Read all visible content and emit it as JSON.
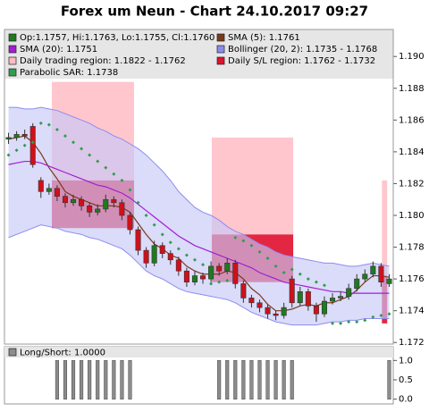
{
  "chart_data": [
    {
      "type": "candlestick",
      "title": "Forex um Neun - Chart 24.10.2017 09:27",
      "ylim": [
        1.1719,
        1.1917
      ],
      "yticks": [
        1.172,
        1.174,
        1.176,
        1.178,
        {
          "value": 1.18,
          "label": "1.180"
        },
        1.182,
        1.184,
        1.186,
        1.188,
        {
          "value": 1.19,
          "label": "1.190"
        }
      ],
      "candles": {
        "name": "Op:1.1757, Hi:1.1763, Lo:1.1755, Cl:1.1760",
        "color": "#1f7a1f",
        "down_color": "#d0101a",
        "open": [
          1.1848,
          1.1849,
          1.1851,
          1.1856,
          1.1822,
          1.1815,
          1.1817,
          1.1812,
          1.1808,
          1.181,
          1.1806,
          1.1802,
          1.1804,
          1.181,
          1.1808,
          1.18,
          1.1791,
          1.1778,
          1.177,
          1.1781,
          1.1776,
          1.1772,
          1.1765,
          1.1758,
          1.1762,
          1.176,
          1.1768,
          1.1765,
          1.177,
          1.1757,
          1.1748,
          1.1745,
          1.1742,
          1.1738,
          1.1737,
          1.176,
          1.1745,
          1.1752,
          1.1743,
          1.1738,
          1.1746,
          1.1748,
          1.1749,
          1.1754,
          1.176,
          1.1763,
          1.1768,
          1.1757
        ],
        "high": [
          1.1852,
          1.1853,
          1.1854,
          1.1858,
          1.1824,
          1.182,
          1.1819,
          1.1814,
          1.1813,
          1.1812,
          1.1808,
          1.1807,
          1.1813,
          1.1812,
          1.181,
          1.1802,
          1.1793,
          1.178,
          1.1784,
          1.1783,
          1.1778,
          1.1774,
          1.1767,
          1.1765,
          1.1764,
          1.1771,
          1.177,
          1.1773,
          1.1772,
          1.1759,
          1.175,
          1.1747,
          1.1744,
          1.174,
          1.1745,
          1.1762,
          1.1755,
          1.1754,
          1.1745,
          1.1749,
          1.1751,
          1.1752,
          1.1757,
          1.1763,
          1.1766,
          1.1771,
          1.177,
          1.1763
        ],
        "low": [
          1.1845,
          1.1847,
          1.1848,
          1.183,
          1.1811,
          1.1813,
          1.1809,
          1.1805,
          1.1806,
          1.1803,
          1.1799,
          1.18,
          1.1802,
          1.1805,
          1.1797,
          1.1788,
          1.1775,
          1.1767,
          1.1768,
          1.1773,
          1.1769,
          1.1762,
          1.1755,
          1.1756,
          1.1757,
          1.1758,
          1.1762,
          1.1763,
          1.1754,
          1.1745,
          1.1742,
          1.1739,
          1.1735,
          1.1734,
          1.1735,
          1.1742,
          1.1743,
          1.174,
          1.1733,
          1.1736,
          1.1744,
          1.1746,
          1.1747,
          1.1752,
          1.1758,
          1.1761,
          1.1755,
          1.1755
        ],
        "close": [
          1.1849,
          1.1851,
          1.185,
          1.1832,
          1.1815,
          1.1817,
          1.1812,
          1.1808,
          1.181,
          1.1806,
          1.1802,
          1.1804,
          1.181,
          1.1808,
          1.18,
          1.1791,
          1.1778,
          1.177,
          1.1781,
          1.1776,
          1.1772,
          1.1765,
          1.1758,
          1.1762,
          1.176,
          1.1768,
          1.1765,
          1.177,
          1.1757,
          1.1748,
          1.1745,
          1.1742,
          1.1738,
          1.1737,
          1.1742,
          1.1745,
          1.1752,
          1.1743,
          1.1738,
          1.1746,
          1.1748,
          1.1749,
          1.1754,
          1.176,
          1.1763,
          1.1768,
          1.1758,
          1.176
        ]
      },
      "series": [
        {
          "name": "SMA (5): 1.1761",
          "color": "#7a3a1a",
          "style": "line",
          "values": [
            1.1848,
            1.1849,
            1.185,
            1.1846,
            1.1839,
            1.183,
            1.1823,
            1.1815,
            1.1812,
            1.181,
            1.1808,
            1.1806,
            1.1806,
            1.1806,
            1.1805,
            1.1802,
            1.1795,
            1.1788,
            1.1782,
            1.1779,
            1.1775,
            1.1773,
            1.1768,
            1.1765,
            1.1763,
            1.1763,
            1.1763,
            1.1765,
            1.1764,
            1.176,
            1.1754,
            1.175,
            1.1744,
            1.174,
            1.174,
            1.1741,
            1.1743,
            1.1744,
            1.1743,
            1.1745,
            1.1745,
            1.1747,
            1.1749,
            1.1753,
            1.1758,
            1.1762,
            1.1762,
            1.1761
          ]
        },
        {
          "name": "SMA (20): 1.1751",
          "color": "#a020d0",
          "style": "line",
          "values": [
            1.1832,
            1.1833,
            1.1834,
            1.1834,
            1.1833,
            1.1831,
            1.1829,
            1.1827,
            1.1825,
            1.1823,
            1.1821,
            1.1819,
            1.1818,
            1.1816,
            1.1814,
            1.1811,
            1.1807,
            1.1803,
            1.1799,
            1.1795,
            1.1791,
            1.1787,
            1.1784,
            1.1781,
            1.1779,
            1.1777,
            1.1775,
            1.1773,
            1.1771,
            1.1769,
            1.1767,
            1.1764,
            1.1762,
            1.176,
            1.1758,
            1.1757,
            1.1756,
            1.1755,
            1.1754,
            1.1753,
            1.1752,
            1.1752,
            1.1751,
            1.1751,
            1.1751,
            1.1751,
            1.1751,
            1.1751
          ]
        },
        {
          "name": "Parabolic SAR: 1.1738",
          "color": "#2e9e4e",
          "style": "diamonds",
          "values": [
            1.1838,
            1.1841,
            1.1844,
            1.1846,
            1.1858,
            1.1857,
            1.1854,
            1.185,
            1.1846,
            1.1842,
            1.1838,
            1.1834,
            1.183,
            1.1826,
            1.1822,
            1.1816,
            1.1808,
            1.18,
            1.1794,
            1.1788,
            1.1783,
            1.1779,
            1.1775,
            1.1772,
            1.1769,
            1.1757,
            1.1758,
            1.1759,
            1.1786,
            1.1784,
            1.1781,
            1.1777,
            1.1773,
            1.1768,
            1.1764,
            1.1766,
            1.1763,
            1.176,
            1.1758,
            1.1756,
            1.1732,
            1.1732,
            1.1733,
            1.1733,
            1.1734,
            1.1736,
            1.1737,
            1.1738
          ]
        }
      ],
      "bands": {
        "name": "Bollinger (20, 2): 1.1735 - 1.1768",
        "color": "#8c8cf0",
        "fill": "#c8c8f8",
        "upper": [
          1.1868,
          1.1868,
          1.1867,
          1.1867,
          1.1868,
          1.1867,
          1.1866,
          1.1864,
          1.1862,
          1.186,
          1.1858,
          1.1855,
          1.1853,
          1.185,
          1.1848,
          1.1845,
          1.1842,
          1.1838,
          1.1833,
          1.1828,
          1.1822,
          1.1815,
          1.181,
          1.1805,
          1.1802,
          1.18,
          1.1797,
          1.1793,
          1.179,
          1.1788,
          1.1785,
          1.1782,
          1.178,
          1.1777,
          1.1775,
          1.1774,
          1.1773,
          1.1772,
          1.1771,
          1.177,
          1.177,
          1.1769,
          1.1768,
          1.1768,
          1.1769,
          1.177,
          1.1769,
          1.1768
        ],
        "lower": [
          1.1786,
          1.1788,
          1.179,
          1.1792,
          1.1794,
          1.1793,
          1.1792,
          1.179,
          1.1789,
          1.1788,
          1.1786,
          1.1785,
          1.1783,
          1.1781,
          1.1779,
          1.1775,
          1.177,
          1.1765,
          1.1762,
          1.176,
          1.1757,
          1.1754,
          1.1752,
          1.1751,
          1.175,
          1.1749,
          1.1748,
          1.1747,
          1.1745,
          1.1742,
          1.1739,
          1.1737,
          1.1735,
          1.1733,
          1.1732,
          1.1731,
          1.1731,
          1.1731,
          1.1731,
          1.1732,
          1.1733,
          1.1733,
          1.1734,
          1.1734,
          1.1735,
          1.1735,
          1.1735,
          1.1735
        ]
      },
      "regions": {
        "trading": {
          "name": "Daily trading region: 1.1822 - 1.1762",
          "color": "#ffbcc4"
        },
        "sl": {
          "name": "Daily S/L region: 1.1762 - 1.1732",
          "color": "#e0102e"
        },
        "days": [
          {
            "start": 5.85,
            "end": 16,
            "trading": [
              1.1884,
              1.1822
            ],
            "sl": [
              1.1822,
              1.1792
            ]
          },
          {
            "start": 25.6,
            "end": 35.65,
            "trading": [
              1.1849,
              1.1788
            ],
            "sl": [
              1.1788,
              1.1758
            ]
          },
          {
            "start": 46.6,
            "end": 47.25,
            "trading": [
              1.1822,
              1.1762
            ],
            "sl": [
              1.1762,
              1.1732
            ]
          }
        ]
      }
    },
    {
      "type": "bar",
      "ylim": [
        -0.1,
        1.1
      ],
      "yticks": [
        {
          "value": 0,
          "label": "0.0"
        },
        {
          "value": 0.5,
          "label": "0.5"
        },
        {
          "value": 1,
          "label": "1.0"
        }
      ],
      "series": [
        {
          "name": "Long/Short: 1.0000",
          "color": "#8c8c8c",
          "values": [
            0,
            0,
            0,
            0,
            0,
            0,
            1,
            1,
            1,
            1,
            1,
            1,
            1,
            1,
            1,
            1,
            0,
            0,
            0,
            0,
            0,
            0,
            0,
            0,
            0,
            0,
            1,
            1,
            1,
            1,
            1,
            1,
            1,
            1,
            1,
            1,
            0,
            0,
            0,
            0,
            0,
            0,
            0,
            0,
            0,
            0,
            0,
            1
          ]
        }
      ]
    }
  ]
}
